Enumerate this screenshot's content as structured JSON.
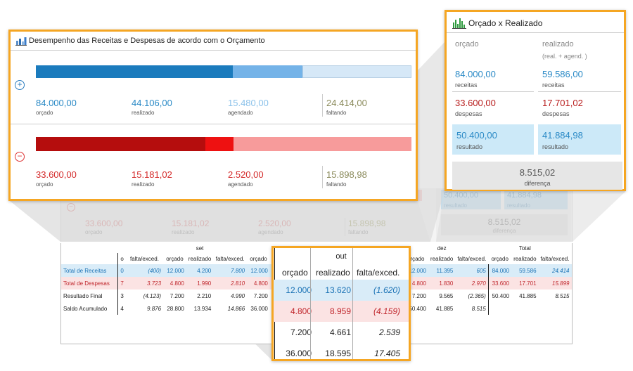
{
  "card1": {
    "title": "Desempenho das Receitas e Despesas de acordo com o Orçamento",
    "receitas": {
      "orcado": "84.000,00",
      "realizado": "44.106,00",
      "agendado": "15.480,00",
      "faltando": "24.414,00",
      "labels": {
        "orcado": "orçado",
        "realizado": "realizado",
        "agendado": "agendado",
        "faltando": "faltando"
      },
      "bar_fractions": {
        "realizado": 0.525,
        "agendado": 0.184,
        "faltando": 0.291
      },
      "colors": {
        "realizado": "#1b7bbd",
        "agendado": "#74b3e8",
        "faltando": "#d6e8f7",
        "text": "#2b8ac6",
        "faltando_text": "#8b8b5c"
      }
    },
    "despesas": {
      "orcado": "33.600,00",
      "realizado": "15.181,02",
      "agendado": "2.520,00",
      "faltando": "15.898,98",
      "labels": {
        "orcado": "orçado",
        "realizado": "realizado",
        "agendado": "agendado",
        "faltando": "faltando"
      },
      "bar_fractions": {
        "realizado": 0.452,
        "agendado": 0.075,
        "faltando": 0.473
      },
      "colors": {
        "realizado": "#b50d0d",
        "agendado": "#ee1111",
        "faltando": "#f79b9b",
        "text": "#d42a2a",
        "faltando_text": "#8b8b5c"
      }
    }
  },
  "card2": {
    "title": "Orçado x Realizado",
    "col_orcado": "orçado",
    "col_realizado": "realizado",
    "col_realizado_sub": "(real. + agend. )",
    "receitas_orcado": "84.000,00",
    "receitas_realizado": "59.586,00",
    "receitas_label": "receitas",
    "despesas_orcado": "33.600,00",
    "despesas_realizado": "17.701,02",
    "despesas_label": "despesas",
    "resultado_orcado": "50.400,00",
    "resultado_realizado": "41.884,98",
    "resultado_label": "resultado",
    "diferenca": "8.515,02",
    "diferenca_label": "diferença"
  },
  "background": {
    "despesas_orcado": "33.600,00",
    "despesas_realizado": "15.181,02",
    "despesas_agendado": "2.520,00",
    "despesas_faltando": "15.898,98",
    "lbl_orcado": "orçado",
    "lbl_realizado": "realizado",
    "lbl_agendado": "agendado",
    "lbl_faltando": "faltando",
    "resultado_orcado": "50.400,00",
    "resultado_realizado": "41.884,98",
    "lbl_resultado": "resultado",
    "diferenca": "8.515,02",
    "lbl_diferenca": "diferença"
  },
  "table": {
    "months": {
      "set": "set",
      "dez": "dez",
      "total": "Total"
    },
    "col_headers": {
      "o": "o",
      "falta": "falta/exced.",
      "orcado": "orçado",
      "realizado": "realizado",
      "re": "re"
    },
    "rows": [
      {
        "label": "Total de Receitas",
        "c0": "0",
        "c1": "(400)",
        "set_o": "12.000",
        "set_r": "4.200",
        "set_f": "7.800",
        "nov_o": "12.000",
        "dez_o": "12.000",
        "dez_r": "11.395",
        "dez_f": "605",
        "tot_o": "84.000",
        "tot_r": "59.586",
        "tot_f": "24.414"
      },
      {
        "label": "Total de Despesas",
        "c0": "7",
        "c1": "3.723",
        "set_o": "4.800",
        "set_r": "1.990",
        "set_f": "2.810",
        "nov_o": "4.800",
        "dez_o": "4.800",
        "dez_r": "1.830",
        "dez_f": "2.970",
        "tot_o": "33.600",
        "tot_r": "17.701",
        "tot_f": "15.899"
      },
      {
        "label": "Resultado Final",
        "c0": "3",
        "c1": "(4.123)",
        "set_o": "7.200",
        "set_r": "2.210",
        "set_f": "4.990",
        "nov_o": "7.200",
        "dez_o": "7.200",
        "dez_r": "9.565",
        "dez_f": "(2.365)",
        "tot_o": "50.400",
        "tot_r": "41.885",
        "tot_f": "8.515"
      },
      {
        "label": "Saldo Acumulado",
        "c0": "4",
        "c1": "9.876",
        "set_o": "28.800",
        "set_r": "13.934",
        "set_f": "14.866",
        "nov_o": "36.000",
        "dez_o": "50.400",
        "dez_r": "41.885",
        "dez_f": "8.515",
        "tot_o": "",
        "tot_r": "",
        "tot_f": ""
      }
    ]
  },
  "zoom": {
    "month": "out",
    "headers": {
      "orcado": "orçado",
      "realizado": "realizado",
      "falta": "falta/exced."
    },
    "rows": [
      {
        "o": "12.000",
        "r": "13.620",
        "f": "(1.620)"
      },
      {
        "o": "4.800",
        "r": "8.959",
        "f": "(4.159)"
      },
      {
        "o": "7.200",
        "r": "4.661",
        "f": "2.539"
      },
      {
        "o": "36.000",
        "r": "18.595",
        "f": "17.405"
      }
    ],
    "left_digits": [
      "0",
      "6"
    ]
  }
}
